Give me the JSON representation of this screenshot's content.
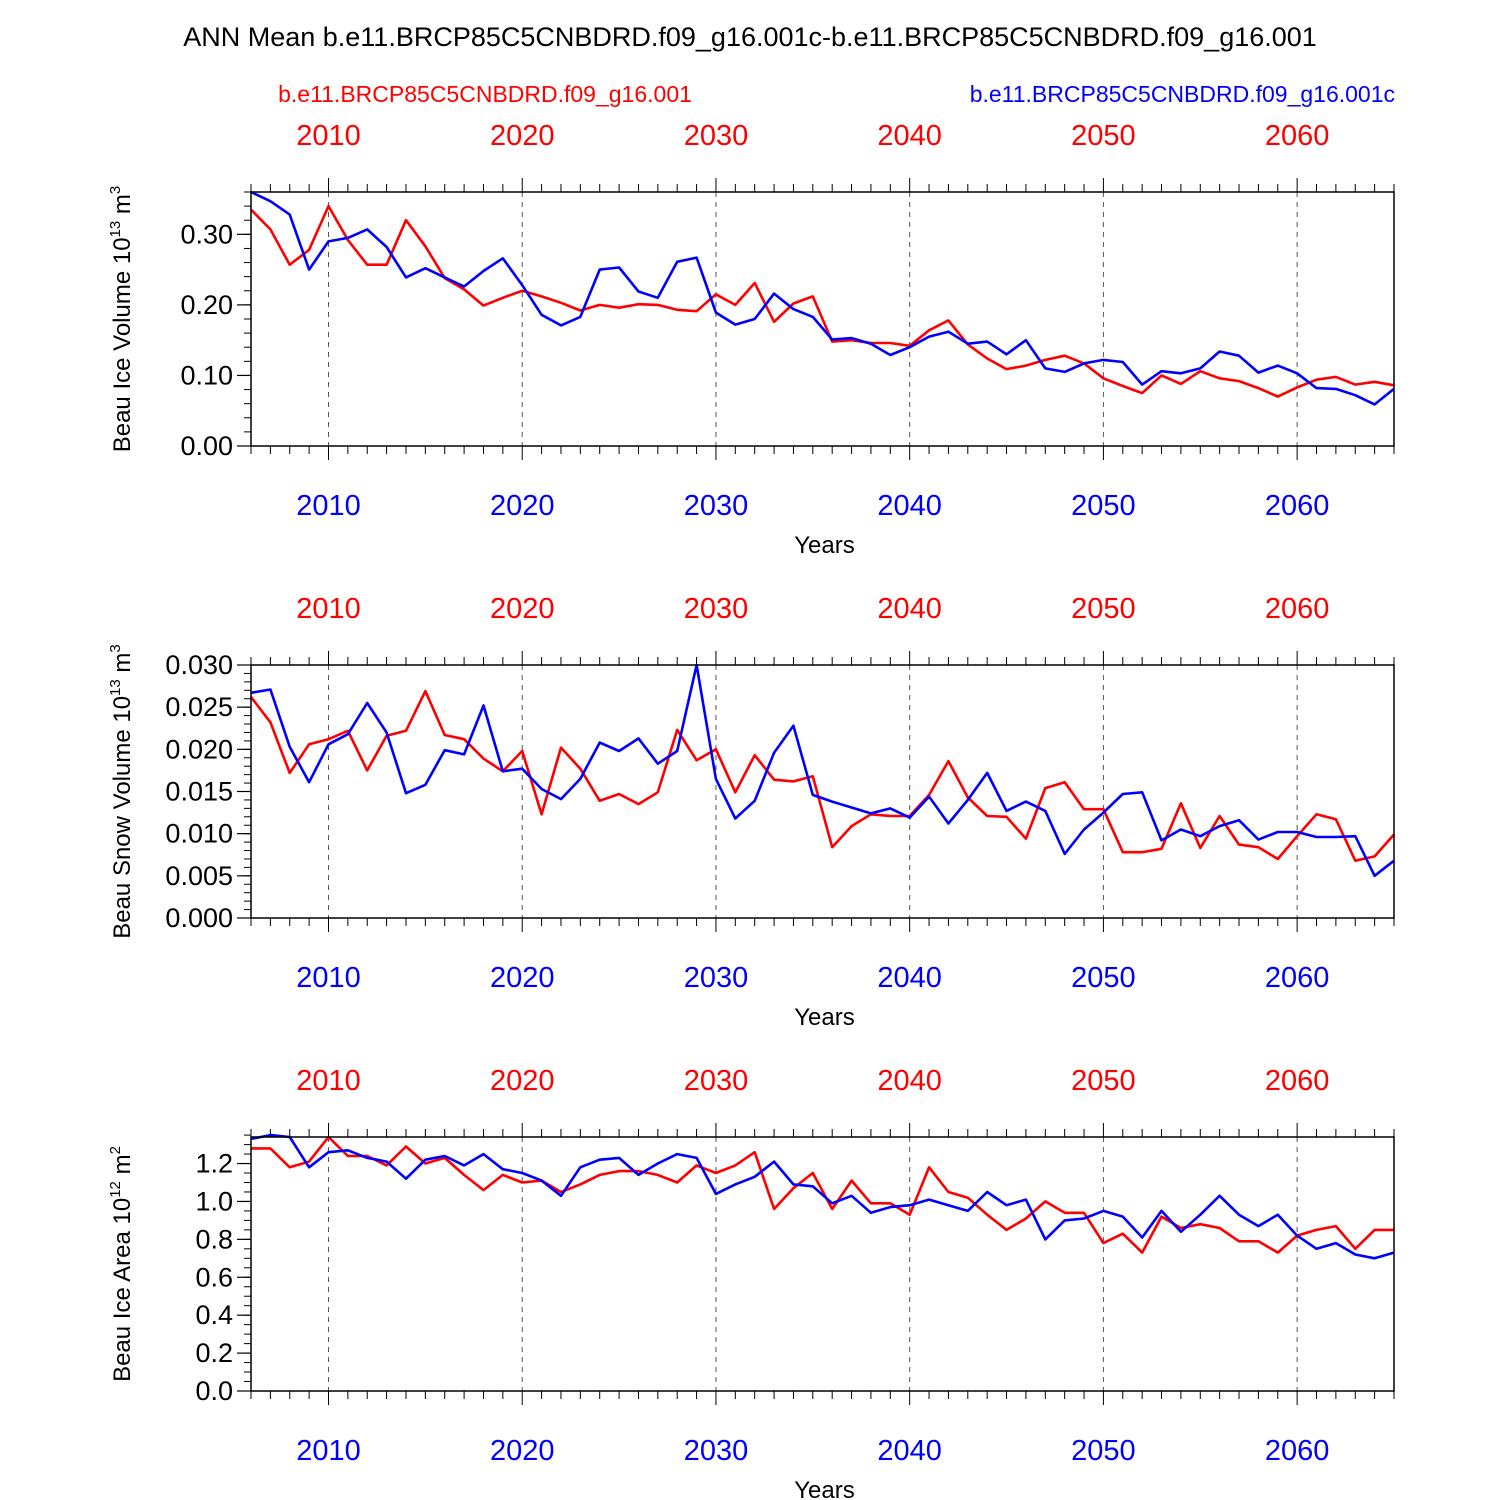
{
  "title": "ANN Mean b.e11.BRCP85C5CNBDRD.f09_g16.001c-b.e11.BRCP85C5CNBDRD.f09_g16.001",
  "legend_left": "b.e11.BRCP85C5CNBDRD.f09_g16.001",
  "legend_right": "b.e11.BRCP85C5CNBDRD.f09_g16.001c",
  "colors": {
    "left_run": "#ff0000",
    "right_run": "#0000ff",
    "frame": "#000000",
    "grid": "#555555"
  },
  "chart_data": [
    {
      "type": "line",
      "ylabel": "Beau Ice Volume 10",
      "ylabel_sup": "13",
      "ylabel_unit": " m",
      "ylabel_unit_sup": "3",
      "xlabel": "Years",
      "xlim": [
        2006,
        2065
      ],
      "ylim": [
        0,
        0.36
      ],
      "xticks": [
        2010,
        2020,
        2030,
        2040,
        2050,
        2060
      ],
      "xtick_labels": [
        "2010",
        "2020",
        "2030",
        "2040",
        "2050",
        "2060"
      ],
      "yticks": [
        0,
        0.1,
        0.2,
        0.3
      ],
      "ytick_labels": [
        "0.00",
        "0.10",
        "0.20",
        "0.30"
      ],
      "yminor": 0.02,
      "grid": "vertical dashed at major x ticks",
      "x": [
        2006,
        2007,
        2008,
        2009,
        2010,
        2011,
        2012,
        2013,
        2014,
        2015,
        2016,
        2017,
        2018,
        2019,
        2020,
        2021,
        2022,
        2023,
        2024,
        2025,
        2026,
        2027,
        2028,
        2029,
        2030,
        2031,
        2032,
        2033,
        2034,
        2035,
        2036,
        2037,
        2038,
        2039,
        2040,
        2041,
        2042,
        2043,
        2044,
        2045,
        2046,
        2047,
        2048,
        2049,
        2050,
        2051,
        2052,
        2053,
        2054,
        2055,
        2056,
        2057,
        2058,
        2059,
        2060,
        2061,
        2062,
        2063,
        2064,
        2065
      ],
      "series": [
        {
          "name": "b.e11.BRCP85C5CNBDRD.f09_g16.001",
          "color": "#ff0000",
          "values": [
            0.335,
            0.307,
            0.257,
            0.278,
            0.34,
            0.292,
            0.257,
            0.257,
            0.32,
            0.283,
            0.238,
            0.222,
            0.199,
            0.21,
            0.22,
            0.212,
            0.203,
            0.192,
            0.2,
            0.196,
            0.201,
            0.2,
            0.193,
            0.191,
            0.215,
            0.2,
            0.231,
            0.176,
            0.202,
            0.212,
            0.148,
            0.15,
            0.146,
            0.146,
            0.142,
            0.164,
            0.178,
            0.144,
            0.124,
            0.109,
            0.114,
            0.122,
            0.128,
            0.117,
            0.096,
            0.085,
            0.075,
            0.1,
            0.088,
            0.106,
            0.096,
            0.092,
            0.082,
            0.07,
            0.083,
            0.094,
            0.098,
            0.087,
            0.091,
            0.086
          ]
        },
        {
          "name": "b.e11.BRCP85C5CNBDRD.f09_g16.001c",
          "color": "#0000ff",
          "values": [
            0.36,
            0.347,
            0.328,
            0.25,
            0.29,
            0.295,
            0.307,
            0.282,
            0.239,
            0.252,
            0.239,
            0.226,
            0.248,
            0.266,
            0.228,
            0.186,
            0.171,
            0.183,
            0.25,
            0.253,
            0.219,
            0.21,
            0.261,
            0.267,
            0.189,
            0.172,
            0.18,
            0.216,
            0.194,
            0.183,
            0.151,
            0.153,
            0.145,
            0.129,
            0.14,
            0.155,
            0.162,
            0.145,
            0.148,
            0.13,
            0.15,
            0.11,
            0.105,
            0.117,
            0.122,
            0.119,
            0.087,
            0.106,
            0.103,
            0.11,
            0.134,
            0.128,
            0.104,
            0.114,
            0.103,
            0.082,
            0.081,
            0.072,
            0.059,
            0.081
          ]
        }
      ]
    },
    {
      "type": "line",
      "ylabel": "Beau Snow Volume 10",
      "ylabel_sup": "13",
      "ylabel_unit": " m",
      "ylabel_unit_sup": "3",
      "xlabel": "Years",
      "xlim": [
        2006,
        2065
      ],
      "ylim": [
        0,
        0.03
      ],
      "xticks": [
        2010,
        2020,
        2030,
        2040,
        2050,
        2060
      ],
      "xtick_labels": [
        "2010",
        "2020",
        "2030",
        "2040",
        "2050",
        "2060"
      ],
      "yticks": [
        0,
        0.005,
        0.01,
        0.015,
        0.02,
        0.025,
        0.03
      ],
      "ytick_labels": [
        "0.000",
        "0.005",
        "0.010",
        "0.015",
        "0.020",
        "0.025",
        "0.030"
      ],
      "yminor": 0.001,
      "grid": "vertical dashed at major x ticks",
      "x": [
        2006,
        2007,
        2008,
        2009,
        2010,
        2011,
        2012,
        2013,
        2014,
        2015,
        2016,
        2017,
        2018,
        2019,
        2020,
        2021,
        2022,
        2023,
        2024,
        2025,
        2026,
        2027,
        2028,
        2029,
        2030,
        2031,
        2032,
        2033,
        2034,
        2035,
        2036,
        2037,
        2038,
        2039,
        2040,
        2041,
        2042,
        2043,
        2044,
        2045,
        2046,
        2047,
        2048,
        2049,
        2050,
        2051,
        2052,
        2053,
        2054,
        2055,
        2056,
        2057,
        2058,
        2059,
        2060,
        2061,
        2062,
        2063,
        2064,
        2065
      ],
      "series": [
        {
          "name": "b.e11.BRCP85C5CNBDRD.f09_g16.001",
          "color": "#ff0000",
          "values": [
            0.0262,
            0.0232,
            0.0172,
            0.0206,
            0.0212,
            0.0222,
            0.0175,
            0.0216,
            0.0222,
            0.0269,
            0.0217,
            0.0212,
            0.0189,
            0.0174,
            0.0198,
            0.0123,
            0.0202,
            0.0177,
            0.0139,
            0.0147,
            0.0135,
            0.0149,
            0.0223,
            0.0187,
            0.02,
            0.0149,
            0.0193,
            0.0164,
            0.0162,
            0.0168,
            0.0084,
            0.0109,
            0.0123,
            0.0121,
            0.0121,
            0.0146,
            0.0186,
            0.0143,
            0.0121,
            0.012,
            0.0094,
            0.0154,
            0.0161,
            0.0129,
            0.0129,
            0.0078,
            0.0078,
            0.0082,
            0.0136,
            0.0083,
            0.0121,
            0.0087,
            0.0084,
            0.007,
            0.0097,
            0.0123,
            0.0117,
            0.0068,
            0.0073,
            0.0099
          ]
        },
        {
          "name": "b.e11.BRCP85C5CNBDRD.f09_g16.001c",
          "color": "#0000ff",
          "values": [
            0.0267,
            0.0271,
            0.0203,
            0.0161,
            0.0206,
            0.0218,
            0.0255,
            0.022,
            0.0148,
            0.0158,
            0.0199,
            0.0194,
            0.0252,
            0.0174,
            0.0177,
            0.0153,
            0.0141,
            0.0165,
            0.0208,
            0.0198,
            0.0213,
            0.0183,
            0.0198,
            0.03,
            0.0165,
            0.0118,
            0.0139,
            0.0196,
            0.0228,
            0.0146,
            0.0138,
            0.0131,
            0.0124,
            0.013,
            0.0119,
            0.0144,
            0.0112,
            0.014,
            0.0172,
            0.0127,
            0.0138,
            0.0127,
            0.0076,
            0.0105,
            0.0125,
            0.0147,
            0.0149,
            0.0092,
            0.0105,
            0.0097,
            0.0109,
            0.0116,
            0.0093,
            0.0102,
            0.0102,
            0.0096,
            0.0096,
            0.0097,
            0.005,
            0.0068
          ]
        }
      ]
    },
    {
      "type": "line",
      "ylabel": "Beau Ice Area 10",
      "ylabel_sup": "12",
      "ylabel_unit": " m",
      "ylabel_unit_sup": "2",
      "xlabel": "Years",
      "xlim": [
        2006,
        2065
      ],
      "ylim": [
        0,
        1.34
      ],
      "xticks": [
        2010,
        2020,
        2030,
        2040,
        2050,
        2060
      ],
      "xtick_labels": [
        "2010",
        "2020",
        "2030",
        "2040",
        "2050",
        "2060"
      ],
      "yticks": [
        0,
        0.2,
        0.4,
        0.6,
        0.8,
        1.0,
        1.2
      ],
      "ytick_labels": [
        "0.0",
        "0.2",
        "0.4",
        "0.6",
        "0.8",
        "1.0",
        "1.2"
      ],
      "yminor": 0.05,
      "grid": "vertical dashed at major x ticks",
      "x": [
        2006,
        2007,
        2008,
        2009,
        2010,
        2011,
        2012,
        2013,
        2014,
        2015,
        2016,
        2017,
        2018,
        2019,
        2020,
        2021,
        2022,
        2023,
        2024,
        2025,
        2026,
        2027,
        2028,
        2029,
        2030,
        2031,
        2032,
        2033,
        2034,
        2035,
        2036,
        2037,
        2038,
        2039,
        2040,
        2041,
        2042,
        2043,
        2044,
        2045,
        2046,
        2047,
        2048,
        2049,
        2050,
        2051,
        2052,
        2053,
        2054,
        2055,
        2056,
        2057,
        2058,
        2059,
        2060,
        2061,
        2062,
        2063,
        2064,
        2065
      ],
      "series": [
        {
          "name": "b.e11.BRCP85C5CNBDRD.f09_g16.001",
          "color": "#ff0000",
          "values": [
            1.28,
            1.28,
            1.18,
            1.21,
            1.34,
            1.24,
            1.24,
            1.19,
            1.29,
            1.2,
            1.23,
            1.14,
            1.06,
            1.14,
            1.1,
            1.11,
            1.05,
            1.09,
            1.14,
            1.16,
            1.16,
            1.14,
            1.1,
            1.19,
            1.15,
            1.19,
            1.26,
            0.96,
            1.07,
            1.15,
            0.96,
            1.11,
            0.99,
            0.99,
            0.93,
            1.18,
            1.05,
            1.02,
            0.93,
            0.85,
            0.91,
            1.0,
            0.94,
            0.94,
            0.78,
            0.83,
            0.73,
            0.92,
            0.86,
            0.88,
            0.86,
            0.79,
            0.79,
            0.73,
            0.82,
            0.85,
            0.87,
            0.75,
            0.85,
            0.85
          ]
        },
        {
          "name": "b.e11.BRCP85C5CNBDRD.f09_g16.001c",
          "color": "#0000ff",
          "values": [
            1.33,
            1.35,
            1.34,
            1.18,
            1.26,
            1.27,
            1.23,
            1.21,
            1.12,
            1.22,
            1.24,
            1.19,
            1.25,
            1.17,
            1.15,
            1.11,
            1.03,
            1.18,
            1.22,
            1.23,
            1.14,
            1.2,
            1.25,
            1.23,
            1.04,
            1.09,
            1.13,
            1.21,
            1.09,
            1.08,
            0.99,
            1.03,
            0.94,
            0.97,
            0.98,
            1.01,
            0.98,
            0.95,
            1.05,
            0.98,
            1.01,
            0.8,
            0.9,
            0.91,
            0.95,
            0.92,
            0.81,
            0.95,
            0.84,
            0.93,
            1.03,
            0.93,
            0.87,
            0.93,
            0.82,
            0.75,
            0.78,
            0.72,
            0.7,
            0.73
          ]
        }
      ]
    }
  ]
}
